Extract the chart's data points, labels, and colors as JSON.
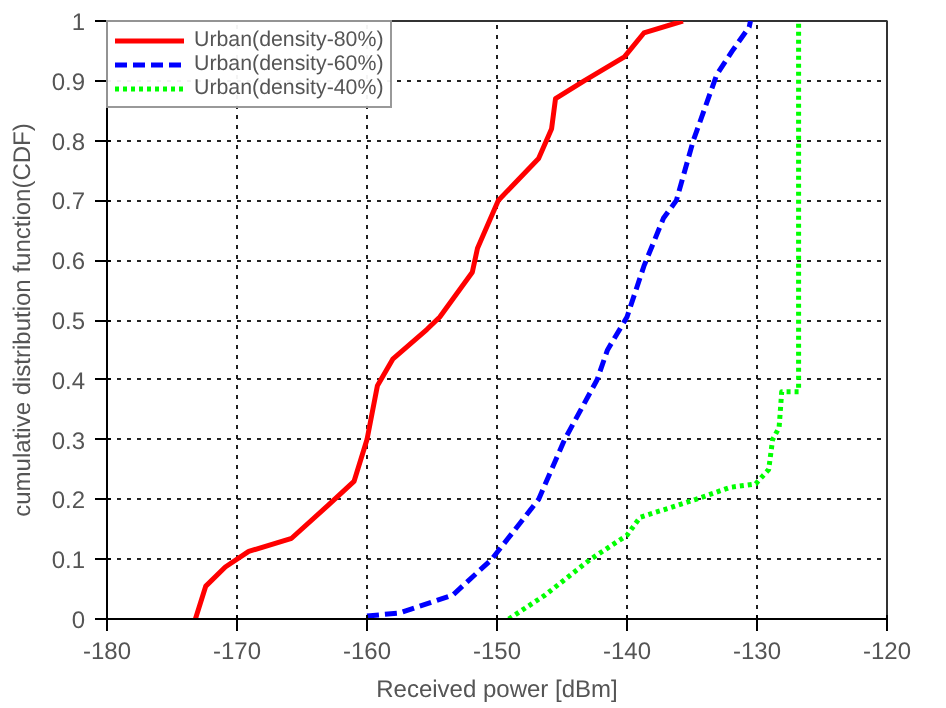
{
  "chart_data": {
    "type": "line",
    "xlabel": "Received power [dBm]",
    "ylabel": "cumulative distribution function(CDF)",
    "xlim": [
      -180,
      -120
    ],
    "ylim": [
      0,
      1
    ],
    "xticks": [
      -180,
      -170,
      -160,
      -150,
      -140,
      -130,
      -120
    ],
    "yticks": [
      0,
      0.1,
      0.2,
      0.3,
      0.4,
      0.5,
      0.6,
      0.7,
      0.8,
      0.9,
      1
    ],
    "grid": true,
    "legend": "top left",
    "marker": "none",
    "series": [
      {
        "name": "Urban(density-80%)",
        "color": "#ff0000",
        "line_style": "solid",
        "x": [
          -173.2,
          -172.4,
          -170.9,
          -169.1,
          -165.8,
          -163,
          -161,
          -160,
          -159.2,
          -158,
          -155.4,
          -154.4,
          -151.9,
          -151.5,
          -149.9,
          -146.8,
          -145.8,
          -145.5,
          -143.3,
          -140.2,
          -138.7,
          -135.7
        ],
        "values": [
          0,
          0.055,
          0.087,
          0.113,
          0.135,
          0.19,
          0.23,
          0.3,
          0.39,
          0.435,
          0.484,
          0.505,
          0.58,
          0.62,
          0.7,
          0.77,
          0.82,
          0.87,
          0.9,
          0.94,
          0.98,
          1.0
        ]
      },
      {
        "name": "Urban(density-60%)",
        "color": "#0000ff",
        "line_style": "dashed",
        "x": [
          -160,
          -157.5,
          -153.4,
          -150.4,
          -146.8,
          -144.8,
          -142.3,
          -141.5,
          -140,
          -138.7,
          -137.2,
          -136.2,
          -134.9,
          -133.1,
          -131.9,
          -130.6,
          -130.5
        ],
        "values": [
          0.005,
          0.01,
          0.04,
          0.1,
          0.2,
          0.3,
          0.4,
          0.45,
          0.505,
          0.59,
          0.67,
          0.7,
          0.8,
          0.91,
          0.95,
          0.99,
          1.0
        ]
      },
      {
        "name": "Urban(density-40%)",
        "color": "#00ff00",
        "line_style": "dotted",
        "x": [
          -149.1,
          -146.3,
          -142.8,
          -140,
          -139,
          -134.7,
          -132.1,
          -130.1,
          -129.1,
          -128.8,
          -128.3,
          -128.1,
          -126.8,
          -126.8
        ],
        "values": [
          0,
          0.04,
          0.1,
          0.14,
          0.17,
          0.2,
          0.22,
          0.226,
          0.25,
          0.3,
          0.32,
          0.38,
          0.38,
          1.0
        ]
      }
    ]
  }
}
